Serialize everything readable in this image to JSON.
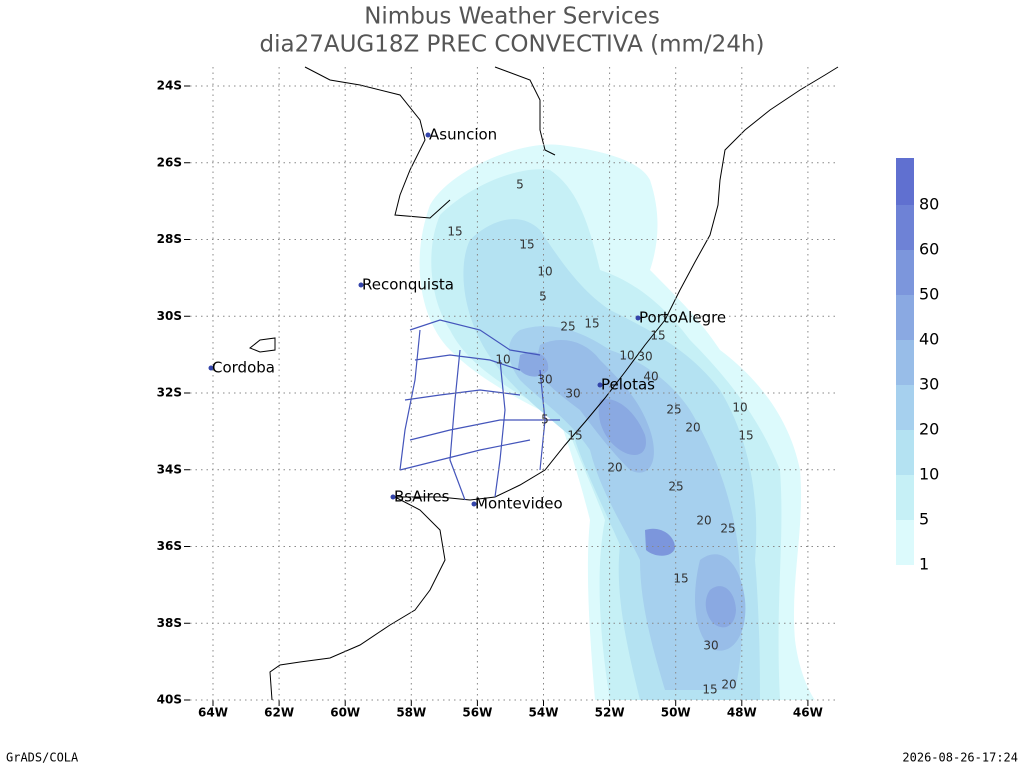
{
  "header": {
    "title": "Nimbus Weather Services",
    "subtitle": "dia27AUG18Z PREC CONVECTIVA (mm/24h)"
  },
  "axes": {
    "x_ticks": [
      "64W",
      "62W",
      "60W",
      "58W",
      "56W",
      "54W",
      "52W",
      "50W",
      "48W",
      "46W"
    ],
    "y_ticks": [
      "24S",
      "26S",
      "28S",
      "30S",
      "32S",
      "34S",
      "36S",
      "38S",
      "40S"
    ]
  },
  "cities": [
    "Asuncion",
    "Reconquista",
    "Cordoba",
    "BsAires",
    "Montevideo",
    "PortoAlegre",
    "Pelotas"
  ],
  "colorbar": {
    "levels": [
      1,
      5,
      10,
      20,
      30,
      40,
      50,
      60,
      80
    ],
    "colors": [
      "#dcfafc",
      "#c6f0f6",
      "#b4e2f2",
      "#a6d0ee",
      "#98bde8",
      "#8aa9e2",
      "#7c96dc",
      "#6e82d6",
      "#6070d0"
    ]
  },
  "contour_labels": [
    5,
    15,
    15,
    10,
    5,
    25,
    15,
    10,
    30,
    30,
    10,
    30,
    40,
    15,
    25,
    20,
    10,
    15,
    15,
    20,
    25,
    20,
    25,
    15,
    30,
    15,
    20,
    5
  ],
  "footer": {
    "left": "GrADS/COLA",
    "right": "2026-08-26-17:24"
  }
}
